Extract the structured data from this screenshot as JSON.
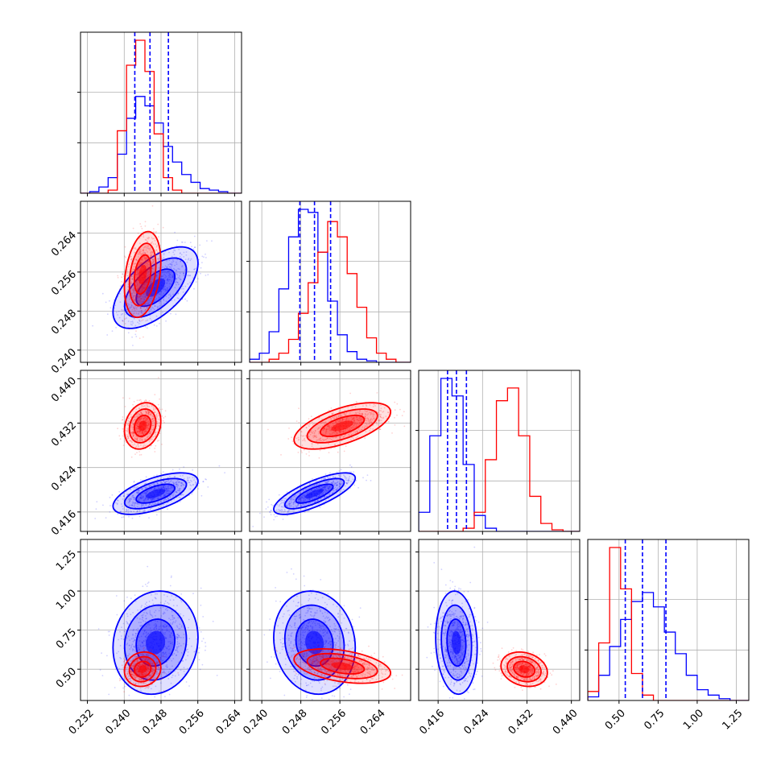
{
  "chart_data": {
    "type": "corner",
    "grid": true,
    "series": [
      {
        "color": "#0000ff"
      },
      {
        "color": "#ff0000"
      }
    ],
    "parameters": [
      {
        "ticks": [
          "0.232",
          "0.240",
          "0.248",
          "0.256",
          "0.264"
        ],
        "tick_values": [
          0.232,
          0.24,
          0.248,
          0.256,
          0.264
        ],
        "range": [
          0.2305,
          0.2655
        ]
      },
      {
        "ticks": [
          "0.240",
          "0.248",
          "0.256",
          "0.264"
        ],
        "tick_values": [
          0.24,
          0.248,
          0.256,
          0.264
        ],
        "range": [
          0.2375,
          0.2705
        ]
      },
      {
        "ticks": [
          "0.416",
          "0.424",
          "0.432",
          "0.440"
        ],
        "tick_values": [
          0.416,
          0.424,
          0.432,
          0.44
        ],
        "range": [
          0.4125,
          0.4415
        ]
      },
      {
        "ticks": [
          "0.50",
          "0.75",
          "1.00",
          "1.25"
        ],
        "tick_values": [
          0.5,
          0.75,
          1.0,
          1.25
        ],
        "range": [
          0.3,
          1.33
        ]
      }
    ],
    "marginals": [
      {
        "edges": [
          0.2305,
          0.2325,
          0.2345,
          0.2365,
          0.2385,
          0.2405,
          0.2425,
          0.2445,
          0.2465,
          0.2485,
          0.2505,
          0.2525,
          0.2545,
          0.2565,
          0.2585,
          0.2605,
          0.2625,
          0.2655
        ],
        "blue": [
          0,
          0.01,
          0.04,
          0.1,
          0.25,
          0.48,
          0.62,
          0.56,
          0.45,
          0.3,
          0.2,
          0.12,
          0.07,
          0.03,
          0.02,
          0.01,
          0
        ],
        "red": [
          0,
          0,
          0,
          0.02,
          0.4,
          0.82,
          0.98,
          0.78,
          0.38,
          0.1,
          0.02,
          0,
          0,
          0,
          0,
          0,
          0
        ],
        "quantiles": [
          0.2423,
          0.2456,
          0.2496
        ]
      },
      {
        "edges": [
          0.2375,
          0.2395,
          0.2415,
          0.2435,
          0.2455,
          0.2475,
          0.2495,
          0.2515,
          0.2535,
          0.2555,
          0.2575,
          0.2595,
          0.2615,
          0.2635,
          0.2655,
          0.2675,
          0.2705
        ],
        "blue": [
          0.02,
          0.06,
          0.2,
          0.48,
          0.82,
          1.0,
          0.98,
          0.72,
          0.4,
          0.18,
          0.07,
          0.02,
          0.01,
          0,
          0,
          0
        ],
        "red": [
          0,
          0,
          0.02,
          0.06,
          0.15,
          0.32,
          0.52,
          0.72,
          0.92,
          0.82,
          0.58,
          0.36,
          0.16,
          0.06,
          0.02,
          0
        ]
      },
      {
        "edges": [
          0.4125,
          0.4145,
          0.4165,
          0.4185,
          0.4205,
          0.4225,
          0.4245,
          0.4265,
          0.4285,
          0.4305,
          0.4325,
          0.4345,
          0.4365,
          0.4385,
          0.4415
        ],
        "blue": [
          0.12,
          0.6,
          0.96,
          0.85,
          0.42,
          0.1,
          0.02,
          0,
          0,
          0,
          0,
          0,
          0,
          0
        ],
        "red": [
          0,
          0,
          0,
          0,
          0.02,
          0.12,
          0.45,
          0.82,
          0.9,
          0.6,
          0.22,
          0.05,
          0.01,
          0
        ]
      },
      {
        "edges": [
          0.3,
          0.37,
          0.44,
          0.51,
          0.58,
          0.65,
          0.72,
          0.79,
          0.86,
          0.93,
          1.0,
          1.07,
          1.14,
          1.21,
          1.33
        ],
        "blue": [
          0.02,
          0.14,
          0.3,
          0.45,
          0.55,
          0.6,
          0.52,
          0.38,
          0.26,
          0.14,
          0.06,
          0.03,
          0.01,
          0
        ],
        "red": [
          0.05,
          0.32,
          0.85,
          0.62,
          0.15,
          0.03,
          0,
          0,
          0,
          0,
          0,
          0,
          0,
          0
        ]
      }
    ],
    "quantile_lines": [
      [
        0.2423,
        0.2456,
        0.2496
      ],
      [
        0.2478,
        0.2508,
        0.2541
      ],
      [
        0.4177,
        0.4193,
        0.4211
      ],
      [
        0.54,
        0.65,
        0.8
      ]
    ],
    "scatter_2d": [
      {
        "x_param": 0,
        "y_param": 1,
        "blue": {
          "mean": [
            0.2468,
            0.2528
          ],
          "sd": [
            0.0042,
            0.0038
          ],
          "rho": 0.6
        },
        "red": {
          "mean": [
            0.244,
            0.2555
          ],
          "sd": [
            0.0018,
            0.004
          ],
          "rho": 0.3
        }
      },
      {
        "x_param": 0,
        "y_param": 2,
        "blue": {
          "mean": [
            0.2468,
            0.4193
          ],
          "sd": [
            0.0042,
            0.0017
          ],
          "rho": 0.6
        },
        "red": {
          "mean": [
            0.244,
            0.4315
          ],
          "sd": [
            0.0018,
            0.0019
          ],
          "rho": 0.2
        }
      },
      {
        "x_param": 1,
        "y_param": 2,
        "blue": {
          "mean": [
            0.2508,
            0.4193
          ],
          "sd": [
            0.0038,
            0.0017
          ],
          "rho": 0.75
        },
        "red": {
          "mean": [
            0.2565,
            0.4315
          ],
          "sd": [
            0.0045,
            0.0019
          ],
          "rho": 0.6
        }
      },
      {
        "x_param": 0,
        "y_param": 3,
        "blue": {
          "mean": [
            0.2468,
            0.67
          ],
          "sd": [
            0.0042,
            0.15
          ],
          "rho": 0.1
        },
        "red": {
          "mean": [
            0.244,
            0.5
          ],
          "sd": [
            0.0018,
            0.05
          ],
          "rho": 0.1
        }
      },
      {
        "x_param": 1,
        "y_param": 3,
        "blue": {
          "mean": [
            0.2508,
            0.67
          ],
          "sd": [
            0.0038,
            0.15
          ],
          "rho": -0.1
        },
        "red": {
          "mean": [
            0.2565,
            0.52
          ],
          "sd": [
            0.0045,
            0.05
          ],
          "rho": -0.4
        }
      },
      {
        "x_param": 2,
        "y_param": 3,
        "blue": {
          "mean": [
            0.4193,
            0.67
          ],
          "sd": [
            0.0017,
            0.15
          ],
          "rho": -0.1
        },
        "red": {
          "mean": [
            0.4315,
            0.5
          ],
          "sd": [
            0.0019,
            0.05
          ],
          "rho": -0.2
        }
      }
    ]
  }
}
